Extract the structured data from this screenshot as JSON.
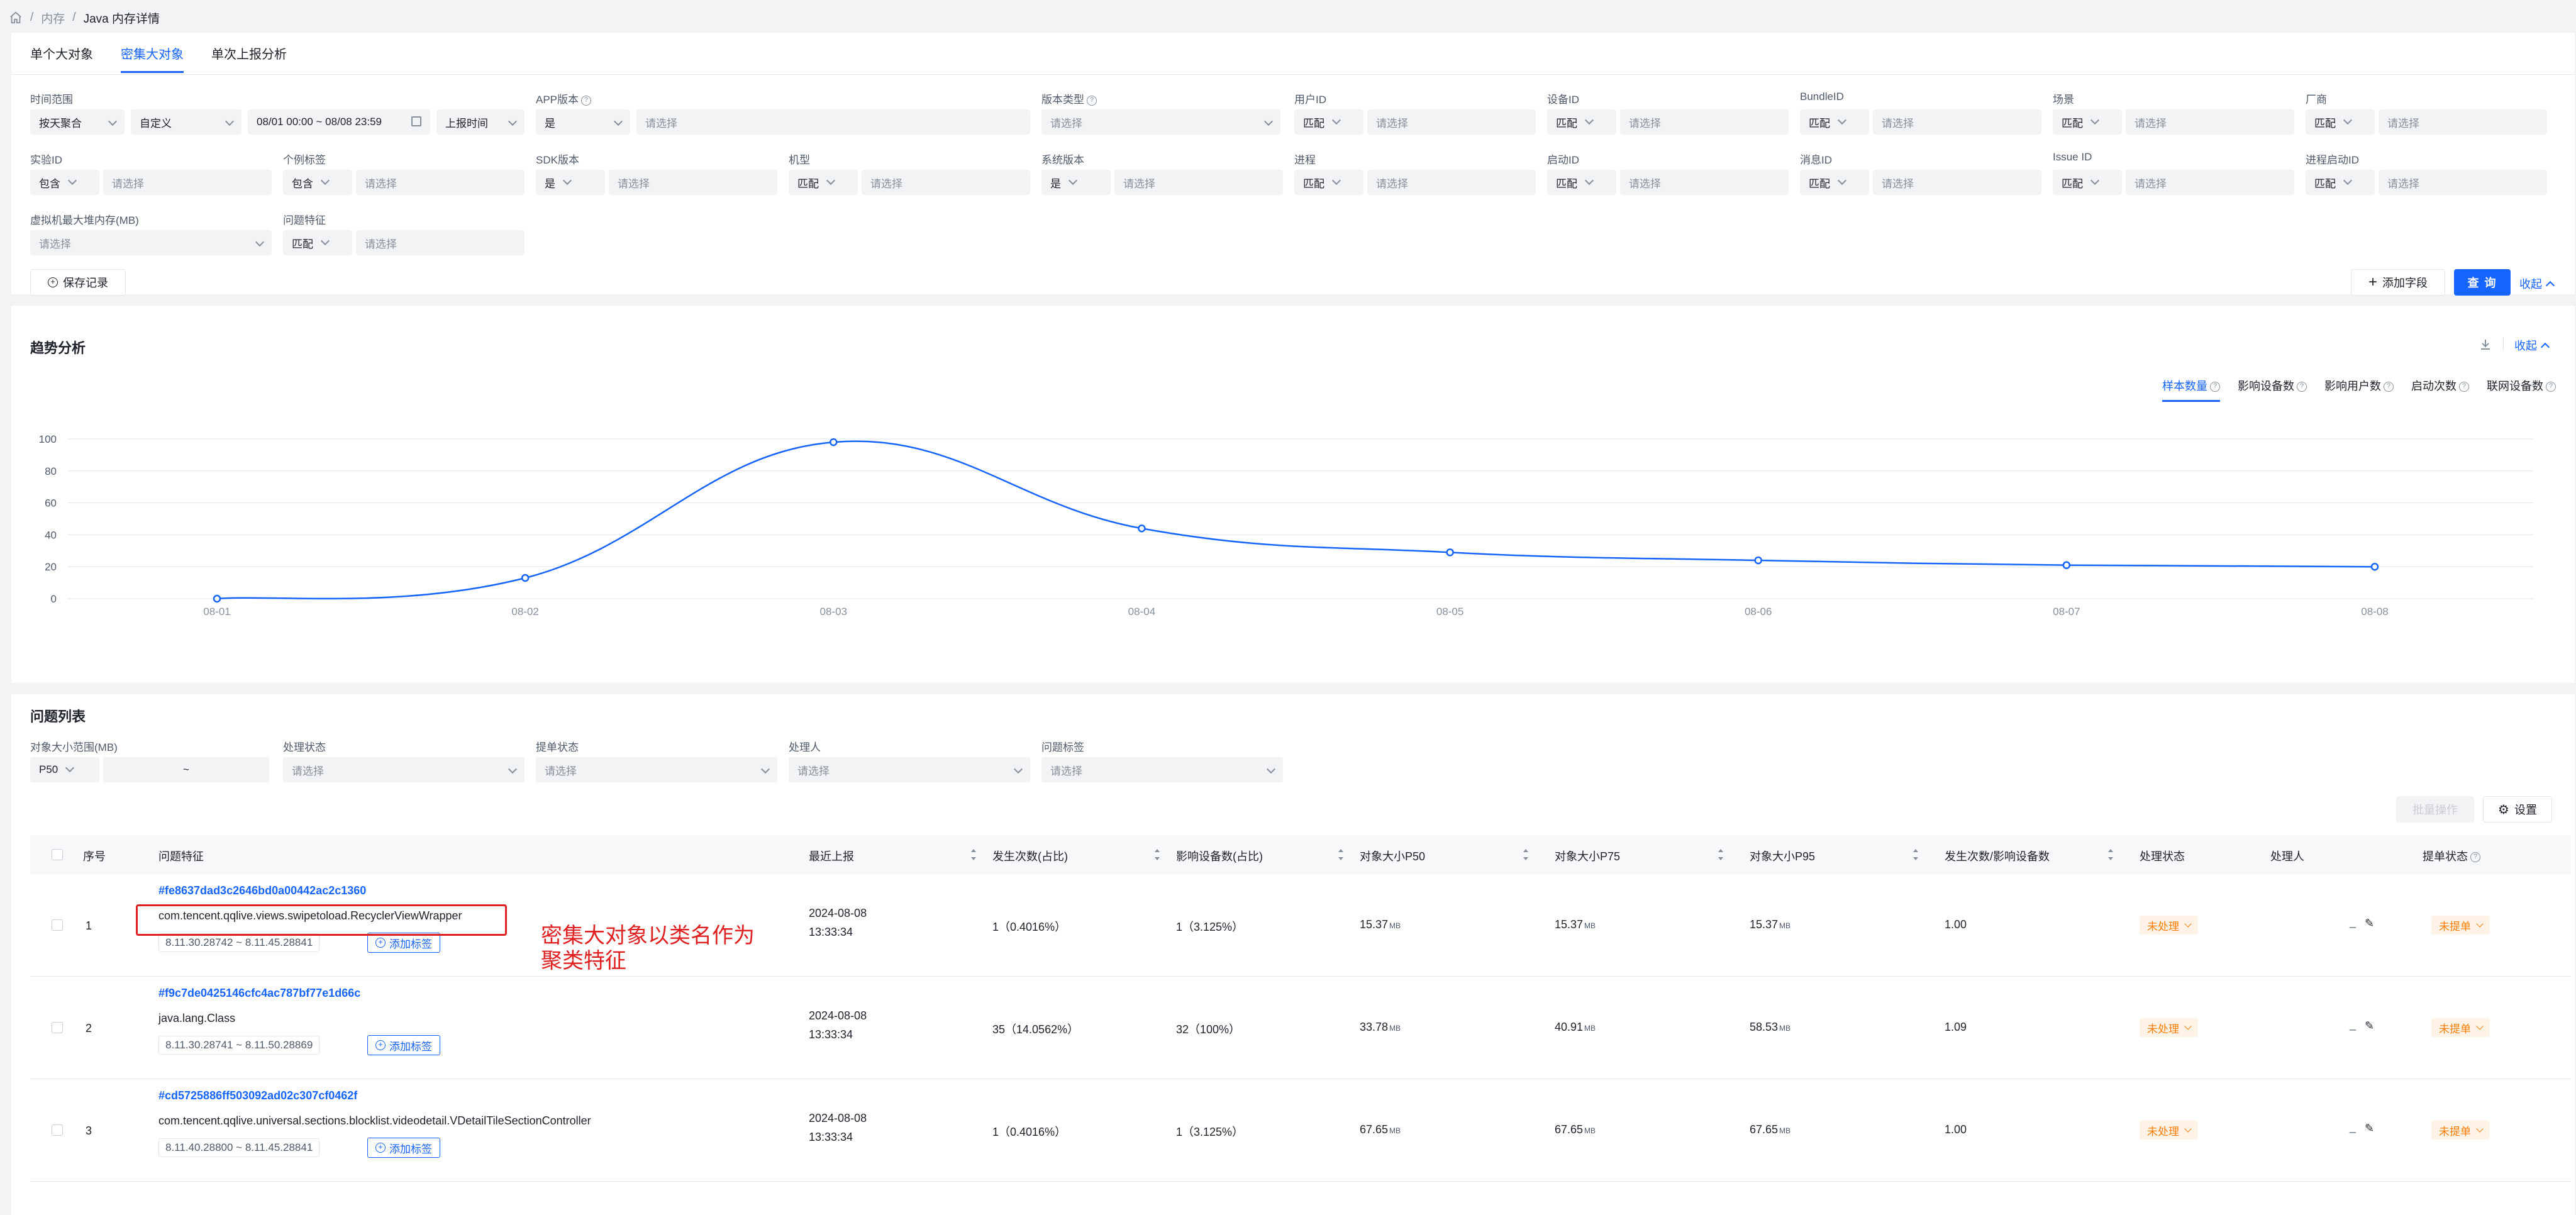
{
  "breadcrumb": {
    "items": [
      "内存",
      "Java 内存详情"
    ]
  },
  "tabs": [
    "单个大对象",
    "密集大对象",
    "单次上报分析"
  ],
  "filters": {
    "time_range": {
      "label": "时间范围",
      "agg": "按天聚合",
      "mode": "自定义",
      "range": "08/01 00:00 ~ 08/08 23:59",
      "basis": "上报时间"
    },
    "app_version": {
      "label": "APP版本",
      "op": "是",
      "placeholder": "请选择"
    },
    "version_type": {
      "label": "版本类型",
      "placeholder": "请选择"
    },
    "user_id": {
      "label": "用户ID",
      "op": "匹配",
      "placeholder": "请选择"
    },
    "device_id": {
      "label": "设备ID",
      "op": "匹配",
      "placeholder": "请选择"
    },
    "bundle_id": {
      "label": "BundleID",
      "op": "匹配",
      "placeholder": "请选择"
    },
    "scene": {
      "label": "场景",
      "op": "匹配",
      "placeholder": "请选择"
    },
    "vendor": {
      "label": "厂商",
      "op": "匹配",
      "placeholder": "请选择"
    },
    "experiment_id": {
      "label": "实验ID",
      "op": "包含",
      "placeholder": "请选择"
    },
    "custom_tag": {
      "label": "个例标签",
      "op": "包含",
      "placeholder": "请选择"
    },
    "sdk_version": {
      "label": "SDK版本",
      "op": "是",
      "placeholder": "请选择"
    },
    "model": {
      "label": "机型",
      "op": "匹配",
      "placeholder": "请选择"
    },
    "os_version": {
      "label": "系统版本",
      "op": "是",
      "placeholder": "请选择"
    },
    "process": {
      "label": "进程",
      "op": "匹配",
      "placeholder": "请选择"
    },
    "launch_id": {
      "label": "启动ID",
      "op": "匹配",
      "placeholder": "请选择"
    },
    "message_id": {
      "label": "消息ID",
      "op": "匹配",
      "placeholder": "请选择"
    },
    "issue_id": {
      "label": "Issue ID",
      "op": "匹配",
      "placeholder": "请选择"
    },
    "process_launch_id": {
      "label": "进程启动ID",
      "op": "匹配",
      "placeholder": "请选择"
    },
    "vm_max_heap": {
      "label": "虚拟机最大堆内存(MB)",
      "placeholder": "请选择"
    },
    "issue_feature": {
      "label": "问题特征",
      "op": "匹配",
      "placeholder": "请选择"
    }
  },
  "actions": {
    "save_record": "保存记录",
    "add_field": "添加字段",
    "query": "查 询",
    "collapse": "收起"
  },
  "trend": {
    "title": "趋势分析",
    "collapse": "收起",
    "metric_tabs": [
      "样本数量",
      "影响设备数",
      "影响用户数",
      "启动次数",
      "联网设备数"
    ]
  },
  "chart_data": {
    "type": "line",
    "categories": [
      "08-01",
      "08-02",
      "08-03",
      "08-04",
      "08-05",
      "08-06",
      "08-07",
      "08-08"
    ],
    "series": [
      {
        "values": [
          0,
          13,
          98,
          44,
          29,
          24,
          21,
          20
        ]
      }
    ],
    "ylim": [
      0,
      100
    ],
    "yticks": [
      0,
      20,
      40,
      60,
      80,
      100
    ],
    "grid": true,
    "color": "#1664ff"
  },
  "issues": {
    "title": "问题列表",
    "filters": {
      "size_range": {
        "label": "对象大小范围(MB)",
        "op": "P50",
        "sep": "~"
      },
      "handle_status": {
        "label": "处理状态",
        "placeholder": "请选择"
      },
      "ticket_status": {
        "label": "提单状态",
        "placeholder": "请选择"
      },
      "handler": {
        "label": "处理人",
        "placeholder": "请选择"
      },
      "issue_tag": {
        "label": "问题标签",
        "placeholder": "请选择"
      }
    },
    "batch": "批量操作",
    "settings": "设置",
    "columns": [
      "序号",
      "问题特征",
      "最近上报",
      "发生次数(占比)",
      "影响设备数(占比)",
      "对象大小P50",
      "对象大小P75",
      "对象大小P95",
      "发生次数/影响设备数",
      "处理状态",
      "处理人",
      "提单状态"
    ],
    "add_tag": "添加标签",
    "rows": [
      {
        "idx": "1",
        "hash": "#fe8637dad3c2646bd0a00442ac2c1360",
        "cls": "com.tencent.qqlive.views.swipetoload.RecyclerViewWrapper",
        "ver": "8.11.30.28742 ~ 8.11.45.28841",
        "date": "2024-08-08",
        "time": "13:33:34",
        "count": "1（0.4016%）",
        "devices": "1（3.125%）",
        "p50": "15.37",
        "p75": "15.37",
        "p95": "15.37",
        "ratio": "1.00",
        "status": "未处理",
        "handler": "_",
        "ticket": "未提单"
      },
      {
        "idx": "2",
        "hash": "#f9c7de0425146cfc4ac787bf77e1d66c",
        "cls": "java.lang.Class",
        "ver": "8.11.30.28741 ~ 8.11.50.28869",
        "date": "2024-08-08",
        "time": "13:33:34",
        "count": "35（14.0562%）",
        "devices": "32（100%）",
        "p50": "33.78",
        "p75": "40.91",
        "p95": "58.53",
        "ratio": "1.09",
        "status": "未处理",
        "handler": "_",
        "ticket": "未提单"
      },
      {
        "idx": "3",
        "hash": "#cd5725886ff503092ad02c307cf0462f",
        "cls": "com.tencent.qqlive.universal.sections.blocklist.videodetail.VDetailTileSectionController",
        "ver": "8.11.40.28800 ~ 8.11.45.28841",
        "date": "2024-08-08",
        "time": "13:33:34",
        "count": "1（0.4016%）",
        "devices": "1（3.125%）",
        "p50": "67.65",
        "p75": "67.65",
        "p95": "67.65",
        "ratio": "1.00",
        "status": "未处理",
        "handler": "_",
        "ticket": "未提单"
      }
    ],
    "unit": "MB"
  },
  "annotation": {
    "line1": "密集大对象以类名作为",
    "line2": "聚类特征"
  }
}
